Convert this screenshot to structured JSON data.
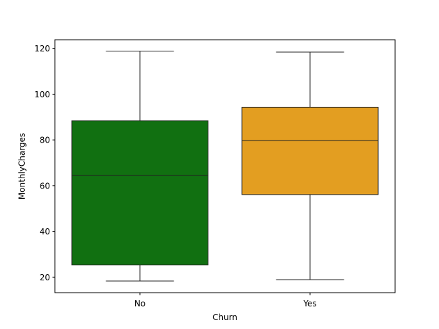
{
  "chart_data": {
    "type": "box",
    "title": "",
    "xlabel": "Churn",
    "ylabel": "MonthlyCharges",
    "ylim": [
      13.2,
      123.8
    ],
    "yticks": [
      20,
      40,
      60,
      80,
      100,
      120
    ],
    "grid": false,
    "categories": [
      "No",
      "Yes"
    ],
    "boxes": [
      {
        "category": "No",
        "color": "#117011",
        "min": 18.3,
        "q1": 25.3,
        "median": 64.4,
        "q3": 88.4,
        "max": 118.8
      },
      {
        "category": "Yes",
        "color": "#e39e21",
        "min": 18.9,
        "q1": 56.1,
        "median": 79.7,
        "q3": 94.3,
        "max": 118.4
      }
    ]
  }
}
